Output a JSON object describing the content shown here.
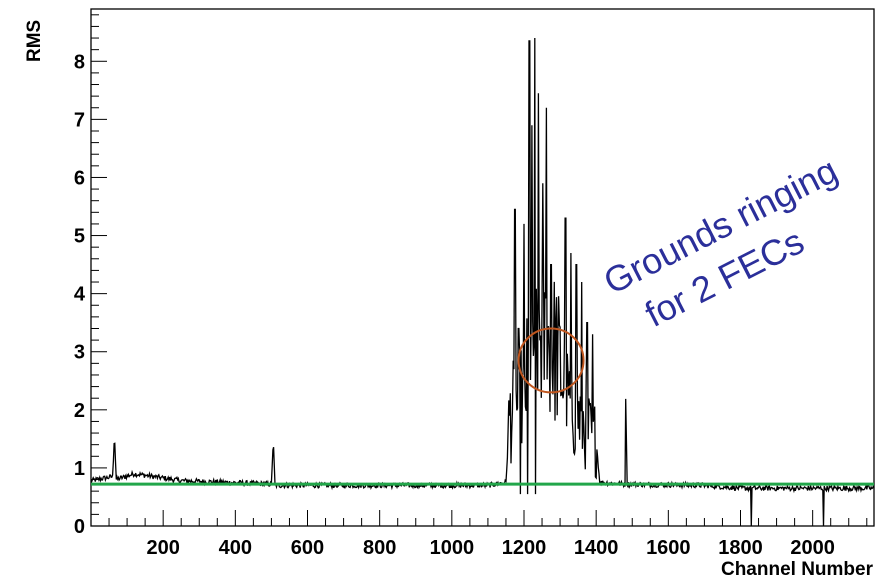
{
  "chart_data": {
    "type": "line",
    "title": "",
    "xlabel": "Channel Number",
    "ylabel": "RMS",
    "xlim": [
      0,
      2170
    ],
    "ylim": [
      0,
      8.9
    ],
    "x_ticks": [
      200,
      400,
      600,
      800,
      1000,
      1200,
      1400,
      1600,
      1800,
      2000
    ],
    "y_ticks": [
      0,
      1,
      2,
      3,
      4,
      5,
      6,
      7,
      8
    ],
    "grid": false,
    "legend": "none",
    "series": [
      {
        "color": "#000000",
        "profile": [
          [
            0,
            0.78
          ],
          [
            60,
            0.85
          ],
          [
            65,
            1.6
          ],
          [
            70,
            0.8
          ],
          [
            120,
            0.9
          ],
          [
            250,
            0.78
          ],
          [
            380,
            0.75
          ],
          [
            500,
            0.72
          ],
          [
            505,
            1.48
          ],
          [
            510,
            0.7
          ],
          [
            700,
            0.7
          ],
          [
            900,
            0.7
          ],
          [
            1100,
            0.7
          ],
          [
            1150,
            0.75
          ],
          [
            1160,
            1.9
          ],
          [
            1200,
            2.2
          ],
          [
            1230,
            3.4
          ],
          [
            1290,
            3.0
          ],
          [
            1320,
            2.2
          ],
          [
            1380,
            1.6
          ],
          [
            1400,
            1.5
          ],
          [
            1410,
            0.75
          ],
          [
            1480,
            0.72
          ],
          [
            1482,
            2.15
          ],
          [
            1486,
            0.72
          ],
          [
            1700,
            0.7
          ],
          [
            1800,
            0.65
          ],
          [
            2000,
            0.65
          ],
          [
            2170,
            0.65
          ]
        ],
        "peaks": [
          [
            1175,
            5.45
          ],
          [
            1185,
            3.4
          ],
          [
            1200,
            5.2
          ],
          [
            1215,
            8.35
          ],
          [
            1222,
            6.9
          ],
          [
            1230,
            8.4
          ],
          [
            1240,
            7.45
          ],
          [
            1252,
            5.9
          ],
          [
            1262,
            7.2
          ],
          [
            1275,
            4.5
          ],
          [
            1315,
            5.3
          ],
          [
            1330,
            4.7
          ],
          [
            1345,
            4.5
          ],
          [
            1360,
            4.2
          ],
          [
            1375,
            3.5
          ],
          [
            1390,
            3.3
          ]
        ],
        "dips": [
          [
            1190,
            0.55
          ],
          [
            1210,
            0.55
          ],
          [
            1232,
            0.55
          ],
          [
            1830,
            0.0
          ],
          [
            2030,
            0.0
          ]
        ]
      },
      {
        "color": "#22a64a",
        "x": [
          0,
          2170
        ],
        "values": [
          0.72,
          0.72
        ]
      }
    ],
    "annotations": [
      {
        "text": "Grounds ringing",
        "color": "#2b2f9a"
      },
      {
        "text": "for 2 FECs",
        "color": "#2b2f9a"
      },
      {
        "shape": "ellipse",
        "color": "#c0561e",
        "center": [
          1275,
          2.85
        ],
        "rx_data": 90,
        "ry_data": 0.55
      }
    ]
  }
}
